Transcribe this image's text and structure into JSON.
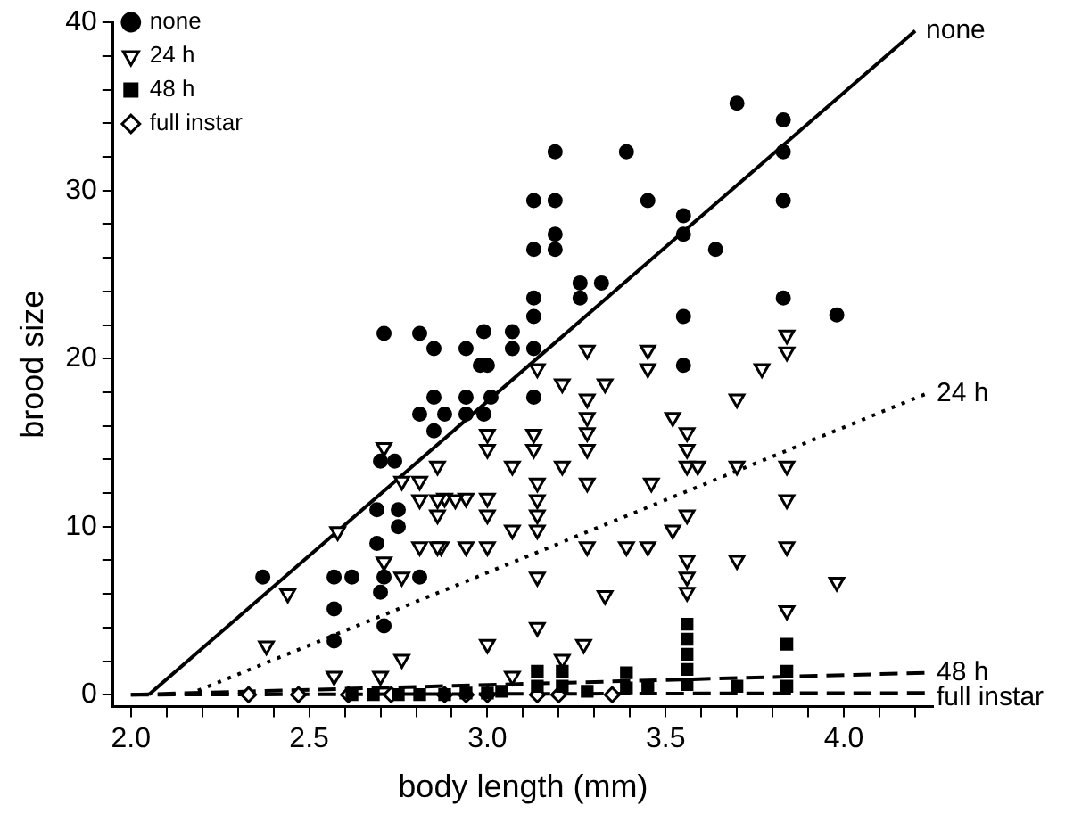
{
  "chart_data": {
    "type": "scatter",
    "xlabel": "body length (mm)",
    "ylabel": "brood size",
    "xlim": [
      1.95,
      4.25
    ],
    "ylim": [
      -0.7,
      40
    ],
    "xticks": [
      {
        "value": 2,
        "label": "2.0"
      },
      {
        "value": 2.1,
        "label": null
      },
      {
        "value": 2.2,
        "label": null
      },
      {
        "value": 2.3,
        "label": null
      },
      {
        "value": 2.4,
        "label": null
      },
      {
        "value": 2.5,
        "label": "2.5"
      },
      {
        "value": 2.6,
        "label": null
      },
      {
        "value": 2.7,
        "label": null
      },
      {
        "value": 2.8,
        "label": null
      },
      {
        "value": 2.9,
        "label": null
      },
      {
        "value": 3,
        "label": "3.0"
      },
      {
        "value": 3.1,
        "label": null
      },
      {
        "value": 3.2,
        "label": null
      },
      {
        "value": 3.3,
        "label": null
      },
      {
        "value": 3.4,
        "label": null
      },
      {
        "value": 3.5,
        "label": "3.5"
      },
      {
        "value": 3.6,
        "label": null
      },
      {
        "value": 3.7,
        "label": null
      },
      {
        "value": 3.8,
        "label": null
      },
      {
        "value": 3.9,
        "label": null
      },
      {
        "value": 4,
        "label": "4.0"
      },
      {
        "value": 4.1,
        "label": null
      },
      {
        "value": 4.2,
        "label": null
      }
    ],
    "yticks": [
      0,
      {
        "value": 2,
        "label": null
      },
      {
        "value": 4,
        "label": null
      },
      {
        "value": 6,
        "label": null
      },
      {
        "value": 8,
        "label": null
      },
      10,
      {
        "value": 12,
        "label": null
      },
      {
        "value": 14,
        "label": null
      },
      {
        "value": 16,
        "label": null
      },
      {
        "value": 18,
        "label": null
      },
      20,
      {
        "value": 22,
        "label": null
      },
      {
        "value": 24,
        "label": null
      },
      {
        "value": 26,
        "label": null
      },
      {
        "value": 28,
        "label": null
      },
      30,
      {
        "value": 32,
        "label": null
      },
      {
        "value": 34,
        "label": null
      },
      {
        "value": 36,
        "label": null
      },
      {
        "value": 38,
        "label": null
      },
      40
    ],
    "legend": "top left",
    "series": [
      {
        "name": "none",
        "color": "#000000",
        "marker": "circle",
        "x": [
          3.7,
          3.83,
          3.83,
          3.19,
          3.39,
          3.13,
          3.19,
          3.45,
          3.83,
          3.55,
          3.55,
          3.19,
          3.13,
          3.19,
          3.64,
          3.26,
          3.32,
          3.26,
          3.13,
          3.83,
          3.13,
          3.55,
          2.99,
          3.07,
          2.94,
          3.07,
          3.13,
          2.98,
          3.0,
          3.55,
          2.94,
          3.01,
          3.13,
          2.88,
          2.94,
          2.99,
          3.98,
          2.71,
          2.81,
          2.85,
          2.85,
          2.81,
          2.85,
          2.7,
          2.74,
          2.69,
          2.75,
          2.75,
          2.69,
          2.37,
          2.57,
          2.62,
          2.71,
          2.81,
          2.7,
          2.57,
          2.71,
          2.57
        ],
        "values": [
          35.2,
          34.2,
          32.3,
          32.3,
          32.3,
          29.4,
          29.4,
          29.4,
          29.4,
          28.5,
          27.4,
          27.4,
          26.5,
          26.5,
          26.5,
          24.5,
          24.5,
          23.6,
          23.6,
          23.6,
          22.5,
          22.5,
          21.6,
          21.6,
          20.6,
          20.6,
          20.6,
          19.6,
          19.6,
          19.6,
          17.7,
          17.7,
          17.7,
          16.7,
          16.7,
          16.7,
          22.6,
          21.5,
          21.5,
          20.6,
          17.7,
          16.7,
          15.7,
          13.9,
          13.9,
          11,
          11,
          10,
          9,
          7,
          7,
          7,
          7,
          7,
          6.1,
          5.1,
          4.1,
          3.2
        ]
      },
      {
        "name": "24 h",
        "color": "#000000",
        "marker": "triangle",
        "x": [
          3.28,
          3.14,
          3.45,
          3.45,
          3.21,
          3.33,
          3.84,
          3.84,
          3.77,
          3.7,
          3.28,
          3.28,
          3.28,
          3.52,
          3.56,
          3.0,
          3.13,
          3.0,
          3.13,
          3.28,
          3.56,
          3.56,
          3.59,
          3.07,
          3.21,
          3.28,
          3.14,
          3.14,
          3.14,
          3.14,
          3.46,
          3.7,
          3.84,
          3.84,
          3.84,
          3.84,
          2.88,
          2.94,
          3.0,
          3.0,
          2.87,
          2.94,
          3.0,
          3.07,
          3.28,
          3.39,
          3.45,
          3.52,
          3.56,
          3.56,
          3.56,
          3.56,
          3.7,
          3.14,
          3.33,
          3.14,
          3.0,
          3.27,
          3.21,
          3.07,
          3.98,
          2.71,
          2.86,
          2.76,
          2.81,
          2.81,
          2.86,
          2.91,
          2.86,
          2.58,
          2.81,
          2.86,
          2.71,
          2.76,
          2.44,
          2.38,
          2.76,
          2.57,
          2.7
        ],
        "values": [
          20.5,
          19.4,
          20.5,
          19.4,
          18.5,
          18.5,
          21.4,
          20.4,
          19.4,
          17.6,
          17.6,
          16.5,
          15.6,
          16.5,
          15.6,
          15.5,
          15.5,
          14.6,
          14.6,
          14.6,
          14.6,
          13.6,
          13.6,
          13.6,
          13.6,
          12.6,
          12.6,
          11.6,
          10.7,
          9.8,
          12.6,
          13.6,
          13.6,
          11.6,
          8.8,
          5,
          11.7,
          11.7,
          11.7,
          10.7,
          8.8,
          8.8,
          8.8,
          9.8,
          8.8,
          8.8,
          8.8,
          9.8,
          10.7,
          8,
          7,
          6.1,
          8,
          7,
          5.9,
          4,
          3,
          3,
          2.1,
          1.1,
          6.7,
          14.7,
          13.6,
          12.7,
          12.7,
          11.6,
          11.6,
          11.6,
          10.7,
          9.7,
          8.8,
          8.8,
          7.9,
          7,
          6,
          2.9,
          2.1,
          1.1,
          1.1
        ]
      },
      {
        "name": "48 h",
        "color": "#000000",
        "marker": "square",
        "x": [
          3.56,
          3.56,
          3.56,
          3.56,
          3.56,
          3.84,
          3.84,
          3.84,
          3.14,
          3.21,
          3.14,
          3.21,
          3.28,
          3.39,
          3.39,
          3.45,
          3.7,
          3.04,
          2.94,
          3.0,
          2.62,
          2.68,
          2.75,
          2.81,
          2.88
        ],
        "values": [
          4.2,
          3.3,
          2.4,
          1.5,
          0.6,
          3,
          1.4,
          0.5,
          1.4,
          1.4,
          0.5,
          0.5,
          0.2,
          1.3,
          0.4,
          0.4,
          0.5,
          0.2,
          0.1,
          0.1,
          0,
          0,
          0,
          0,
          0
        ]
      },
      {
        "name": "full instar",
        "color": "#000000",
        "marker": "diamond",
        "x": [
          2.33,
          2.47,
          2.61,
          2.73,
          2.88,
          2.94,
          3.0,
          3.14,
          3.2,
          3.35
        ],
        "values": [
          0,
          0,
          0,
          0,
          0,
          0,
          0,
          0,
          0,
          0
        ]
      },
      {
        "type": "line",
        "name": "none",
        "color": "#000000",
        "marker": "none",
        "line_style": "solid",
        "x": [
          2.05,
          4.2
        ],
        "values": [
          0,
          39.5
        ]
      },
      {
        "type": "line",
        "name": "24 h",
        "color": "#000000",
        "marker": "none",
        "line_style": "dotted",
        "x": [
          2.16,
          4.23
        ],
        "values": [
          0,
          17.9
        ]
      },
      {
        "type": "line",
        "name": "48 h",
        "color": "#000000",
        "marker": "none",
        "line_style": "dashed",
        "x": [
          2.0,
          4.23
        ],
        "values": [
          0,
          1.3
        ]
      },
      {
        "type": "line",
        "name": "full instar",
        "color": "#000000",
        "marker": "none",
        "line_style": "dashed",
        "x": [
          2.0,
          4.23
        ],
        "values": [
          0,
          0.1
        ]
      }
    ]
  }
}
